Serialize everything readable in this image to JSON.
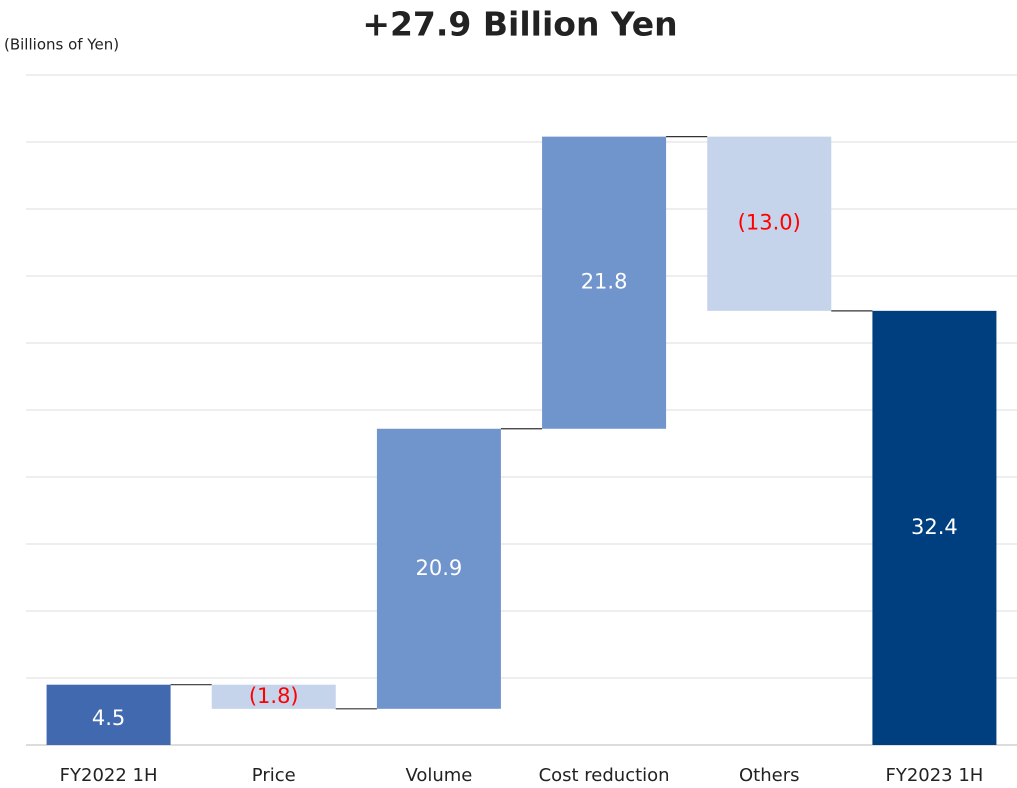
{
  "chart_data": {
    "type": "waterfall",
    "title": "+27.9 Billion Yen",
    "unit_label": "(Billions of Yen)",
    "categories": [
      "FY2022 1H",
      "Price",
      "Volume",
      "Cost reduction",
      "Others",
      "FY2023 1H"
    ],
    "values": [
      4.5,
      -1.8,
      20.9,
      21.8,
      -13.0,
      32.4
    ],
    "value_labels": [
      "4.5",
      "(1.8)",
      "20.9",
      "21.8",
      "(13.0)",
      "32.4"
    ],
    "colors": [
      "#4069b0",
      "#c5d3eb",
      "#7094cc",
      "#7094cc",
      "#c5d3eb",
      "#003f7f"
    ],
    "label_colors": [
      "#ffffff",
      "#ff0000",
      "#ffffff",
      "#ffffff",
      "#ff0000",
      "#ffffff"
    ],
    "ylim": [
      0,
      50
    ],
    "yticks": [
      0,
      5,
      10,
      15,
      20,
      25,
      30,
      35,
      40,
      45,
      50
    ],
    "grid": true
  }
}
